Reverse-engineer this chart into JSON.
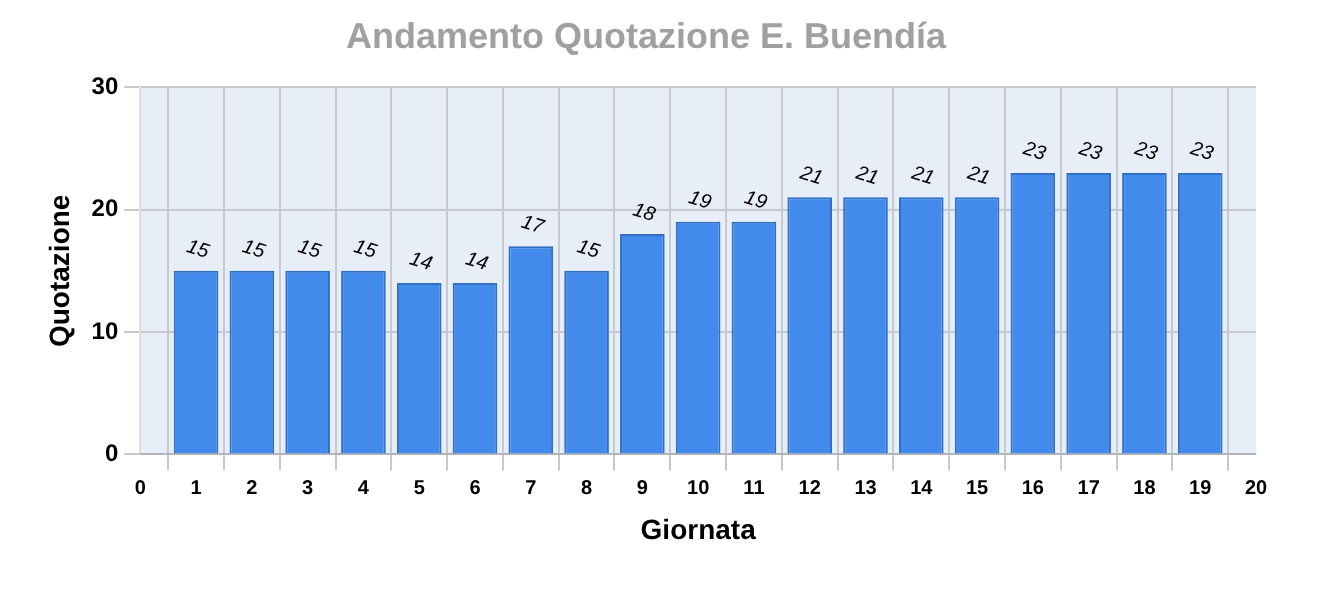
{
  "chart_data": {
    "type": "bar",
    "title": "Andamento Quotazione E. Buendía",
    "xlabel": "Giornata",
    "ylabel": "Quotazione",
    "x": [
      1,
      2,
      3,
      4,
      5,
      6,
      7,
      8,
      9,
      10,
      11,
      12,
      13,
      14,
      15,
      16,
      17,
      18,
      19
    ],
    "values": [
      15,
      15,
      15,
      15,
      14,
      14,
      17,
      15,
      18,
      19,
      19,
      21,
      21,
      21,
      21,
      23,
      23,
      23,
      23
    ],
    "color": "#428bec",
    "xlim": [
      0,
      20
    ],
    "xticks": [
      0,
      1,
      2,
      3,
      4,
      5,
      6,
      7,
      8,
      9,
      10,
      11,
      12,
      13,
      14,
      15,
      16,
      17,
      18,
      19,
      20
    ],
    "ylim": [
      0,
      30
    ],
    "yticks": [
      0,
      10,
      20,
      30
    ],
    "grid": true,
    "data_labels": true,
    "legend": false
  }
}
